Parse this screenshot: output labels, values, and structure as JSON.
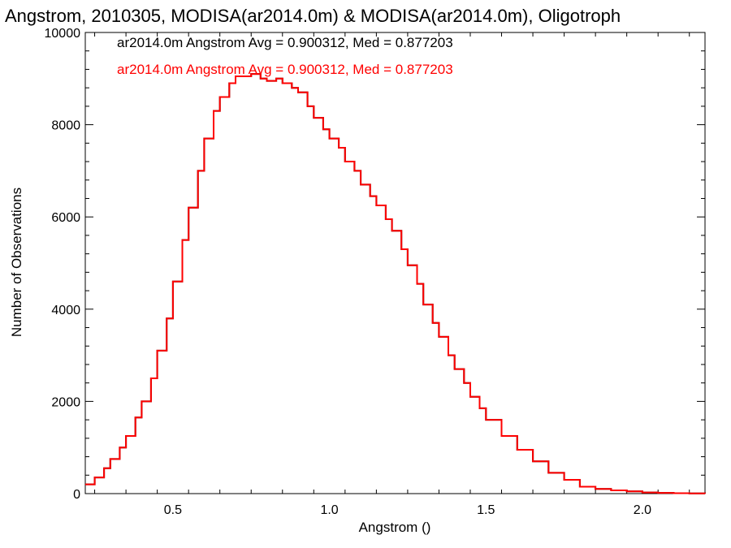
{
  "chart_data": {
    "type": "line",
    "title": "Angstrom, 2010305, MODISA(ar2014.0m) & MODISA(ar2014.0m), Oligotroph",
    "xlabel": "Angstrom ()",
    "ylabel": "Number of Observations",
    "xlim": [
      0.22,
      2.2
    ],
    "ylim": [
      0,
      10000
    ],
    "x_ticks": [
      0.5,
      1.0,
      1.5,
      2.0
    ],
    "x_tick_labels": [
      "0.5",
      "1.0",
      "1.5",
      "2.0"
    ],
    "y_ticks": [
      0,
      2000,
      4000,
      6000,
      8000,
      10000
    ],
    "y_tick_labels": [
      "0",
      "2000",
      "4000",
      "6000",
      "8000",
      "10000"
    ],
    "grid": false,
    "step": true,
    "annotations": [
      {
        "text": "ar2014.0m Angstrom Avg = 0.900312, Med = 0.877203",
        "color": "#000000"
      },
      {
        "text": "ar2014.0m Angstrom Avg = 0.900312, Med = 0.877203",
        "color": "#ff0000"
      }
    ],
    "series": [
      {
        "color": "#000000",
        "x": [
          0.22,
          0.25,
          0.28,
          0.3,
          0.33,
          0.35,
          0.38,
          0.4,
          0.43,
          0.45,
          0.48,
          0.5,
          0.53,
          0.55,
          0.58,
          0.6,
          0.63,
          0.65,
          0.68,
          0.7,
          0.72,
          0.75,
          0.78,
          0.8,
          0.83,
          0.85,
          0.88,
          0.9,
          0.93,
          0.95,
          0.98,
          1.0,
          1.03,
          1.05,
          1.08,
          1.1,
          1.13,
          1.15,
          1.18,
          1.2,
          1.23,
          1.25,
          1.28,
          1.3,
          1.33,
          1.35,
          1.38,
          1.4,
          1.43,
          1.45,
          1.48,
          1.5,
          1.55,
          1.6,
          1.65,
          1.7,
          1.75,
          1.8,
          1.85,
          1.9,
          1.95,
          2.0,
          2.05,
          2.1,
          2.15,
          2.2
        ],
        "y": [
          200,
          350,
          550,
          750,
          1000,
          1250,
          1650,
          2000,
          2500,
          3100,
          3800,
          4600,
          5500,
          6200,
          7000,
          7700,
          8300,
          8600,
          8900,
          9050,
          9050,
          9100,
          9000,
          8950,
          9000,
          8900,
          8800,
          8700,
          8400,
          8150,
          7900,
          7700,
          7500,
          7200,
          7000,
          6700,
          6450,
          6250,
          5950,
          5700,
          5300,
          4950,
          4550,
          4100,
          3700,
          3400,
          3000,
          2700,
          2400,
          2100,
          1850,
          1600,
          1250,
          950,
          700,
          450,
          300,
          150,
          100,
          70,
          50,
          25,
          15,
          8,
          3,
          0
        ]
      },
      {
        "color": "#ff0000",
        "x": [
          0.22,
          0.25,
          0.28,
          0.3,
          0.33,
          0.35,
          0.38,
          0.4,
          0.43,
          0.45,
          0.48,
          0.5,
          0.53,
          0.55,
          0.58,
          0.6,
          0.63,
          0.65,
          0.68,
          0.7,
          0.72,
          0.75,
          0.78,
          0.8,
          0.83,
          0.85,
          0.88,
          0.9,
          0.93,
          0.95,
          0.98,
          1.0,
          1.03,
          1.05,
          1.08,
          1.1,
          1.13,
          1.15,
          1.18,
          1.2,
          1.23,
          1.25,
          1.28,
          1.3,
          1.33,
          1.35,
          1.38,
          1.4,
          1.43,
          1.45,
          1.48,
          1.5,
          1.55,
          1.6,
          1.65,
          1.7,
          1.75,
          1.8,
          1.85,
          1.9,
          1.95,
          2.0,
          2.05,
          2.1,
          2.15,
          2.2
        ],
        "y": [
          200,
          350,
          550,
          750,
          1000,
          1250,
          1650,
          2000,
          2500,
          3100,
          3800,
          4600,
          5500,
          6200,
          7000,
          7700,
          8300,
          8600,
          8900,
          9050,
          9050,
          9100,
          9000,
          8950,
          9000,
          8900,
          8800,
          8700,
          8400,
          8150,
          7900,
          7700,
          7500,
          7200,
          7000,
          6700,
          6450,
          6250,
          5950,
          5700,
          5300,
          4950,
          4550,
          4100,
          3700,
          3400,
          3000,
          2700,
          2400,
          2100,
          1850,
          1600,
          1250,
          950,
          700,
          450,
          300,
          150,
          100,
          70,
          50,
          25,
          15,
          8,
          3,
          0
        ]
      }
    ]
  }
}
